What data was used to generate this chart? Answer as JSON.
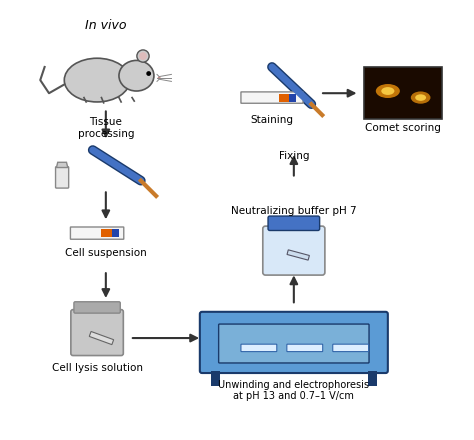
{
  "title": "",
  "background_color": "#ffffff",
  "fig_width": 4.74,
  "fig_height": 4.4,
  "dpi": 100,
  "labels": {
    "in_vivo": "In vivo",
    "tissue": "Tissue\nprocessing",
    "cell_suspension": "Cell suspension",
    "cell_lysis": "Cell lysis solution",
    "unwinding": "Unwinding and electrophoresis\nat pH 13 and 0.7–1 V/cm",
    "neutralizing": "Neutralizing buffer pH 7",
    "fixing": "Fixing",
    "staining": "Staining",
    "comet": "Comet scoring"
  },
  "colors": {
    "arrow": "#333333",
    "blue_dark": "#1a3a6b",
    "blue_mid": "#4472c4",
    "blue_light": "#aec6e8",
    "blue_electro": "#5b9bd5",
    "gray_mouse": "#cccccc",
    "gray_dark": "#888888",
    "orange_tip": "#c97b2a",
    "slide_white": "#f0f0f0",
    "slide_orange": "#e06000",
    "slide_blue": "#2244aa",
    "comet_bg": "#1a0a00",
    "comet_glow": "#d4820a",
    "tube_gray": "#c0c0c0",
    "jar_gray": "#999999"
  }
}
